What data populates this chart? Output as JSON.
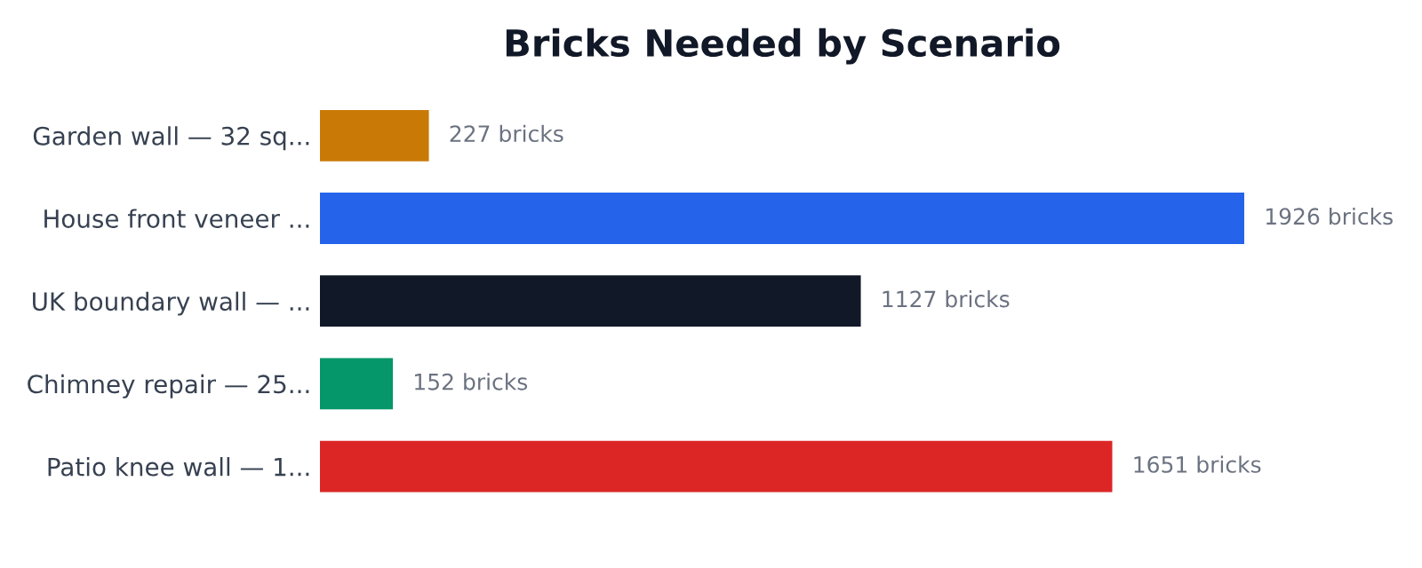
{
  "chart_data": {
    "type": "bar",
    "orientation": "horizontal",
    "title": "Bricks Needed by Scenario",
    "categories": [
      "Garden wall — 32 sq...",
      "House front veneer ...",
      "UK boundary wall — ...",
      "Chimney repair — 25...",
      "Patio knee wall — 1..."
    ],
    "values": [
      227,
      1926,
      1127,
      152,
      1651
    ],
    "colors": [
      "#c97a06",
      "#2563eb",
      "#111827",
      "#059669",
      "#dc2626"
    ],
    "value_labels": [
      "227 bricks",
      "1926 bricks",
      "1127 bricks",
      "152 bricks",
      "1651 bricks"
    ],
    "grid": false,
    "legend": false,
    "tick_labels": "y"
  }
}
